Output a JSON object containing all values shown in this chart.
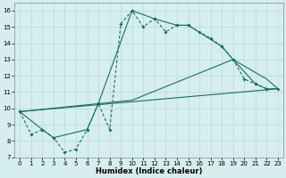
{
  "xlabel": "Humidex (Indice chaleur)",
  "xlim": [
    -0.5,
    23.5
  ],
  "ylim": [
    7,
    16.5
  ],
  "xticks": [
    0,
    1,
    2,
    3,
    4,
    5,
    6,
    7,
    8,
    9,
    10,
    11,
    12,
    13,
    14,
    15,
    16,
    17,
    18,
    19,
    20,
    21,
    22,
    23
  ],
  "yticks": [
    7,
    8,
    9,
    10,
    11,
    12,
    13,
    14,
    15,
    16
  ],
  "bg_color": "#d6eeee",
  "line_color": "#1a6b6b",
  "grid_color": "#b8d8d8",
  "line1_x": [
    0,
    1,
    2,
    3,
    4,
    5,
    6,
    7,
    8,
    9,
    10,
    11,
    12,
    13,
    14,
    15,
    16,
    17,
    18,
    19,
    20,
    21,
    22
  ],
  "line1_y": [
    9.8,
    8.4,
    8.7,
    8.2,
    7.3,
    7.5,
    8.7,
    10.3,
    8.7,
    15.2,
    16.0,
    15.0,
    15.5,
    14.7,
    15.1,
    15.1,
    14.7,
    14.3,
    13.8,
    13.0,
    11.8,
    11.5,
    11.2
  ],
  "line2_x": [
    0,
    2,
    3,
    6,
    7,
    10,
    12,
    14,
    15,
    18,
    19,
    21,
    22,
    23
  ],
  "line2_y": [
    9.8,
    8.7,
    8.2,
    8.7,
    10.3,
    16.0,
    15.5,
    15.1,
    15.1,
    13.8,
    13.0,
    11.5,
    11.2,
    11.2
  ],
  "line3_x": [
    0,
    23
  ],
  "line3_y": [
    9.8,
    11.2
  ],
  "line4_x": [
    0,
    10,
    19,
    22,
    23
  ],
  "line4_y": [
    9.8,
    10.5,
    13.0,
    11.8,
    11.2
  ]
}
